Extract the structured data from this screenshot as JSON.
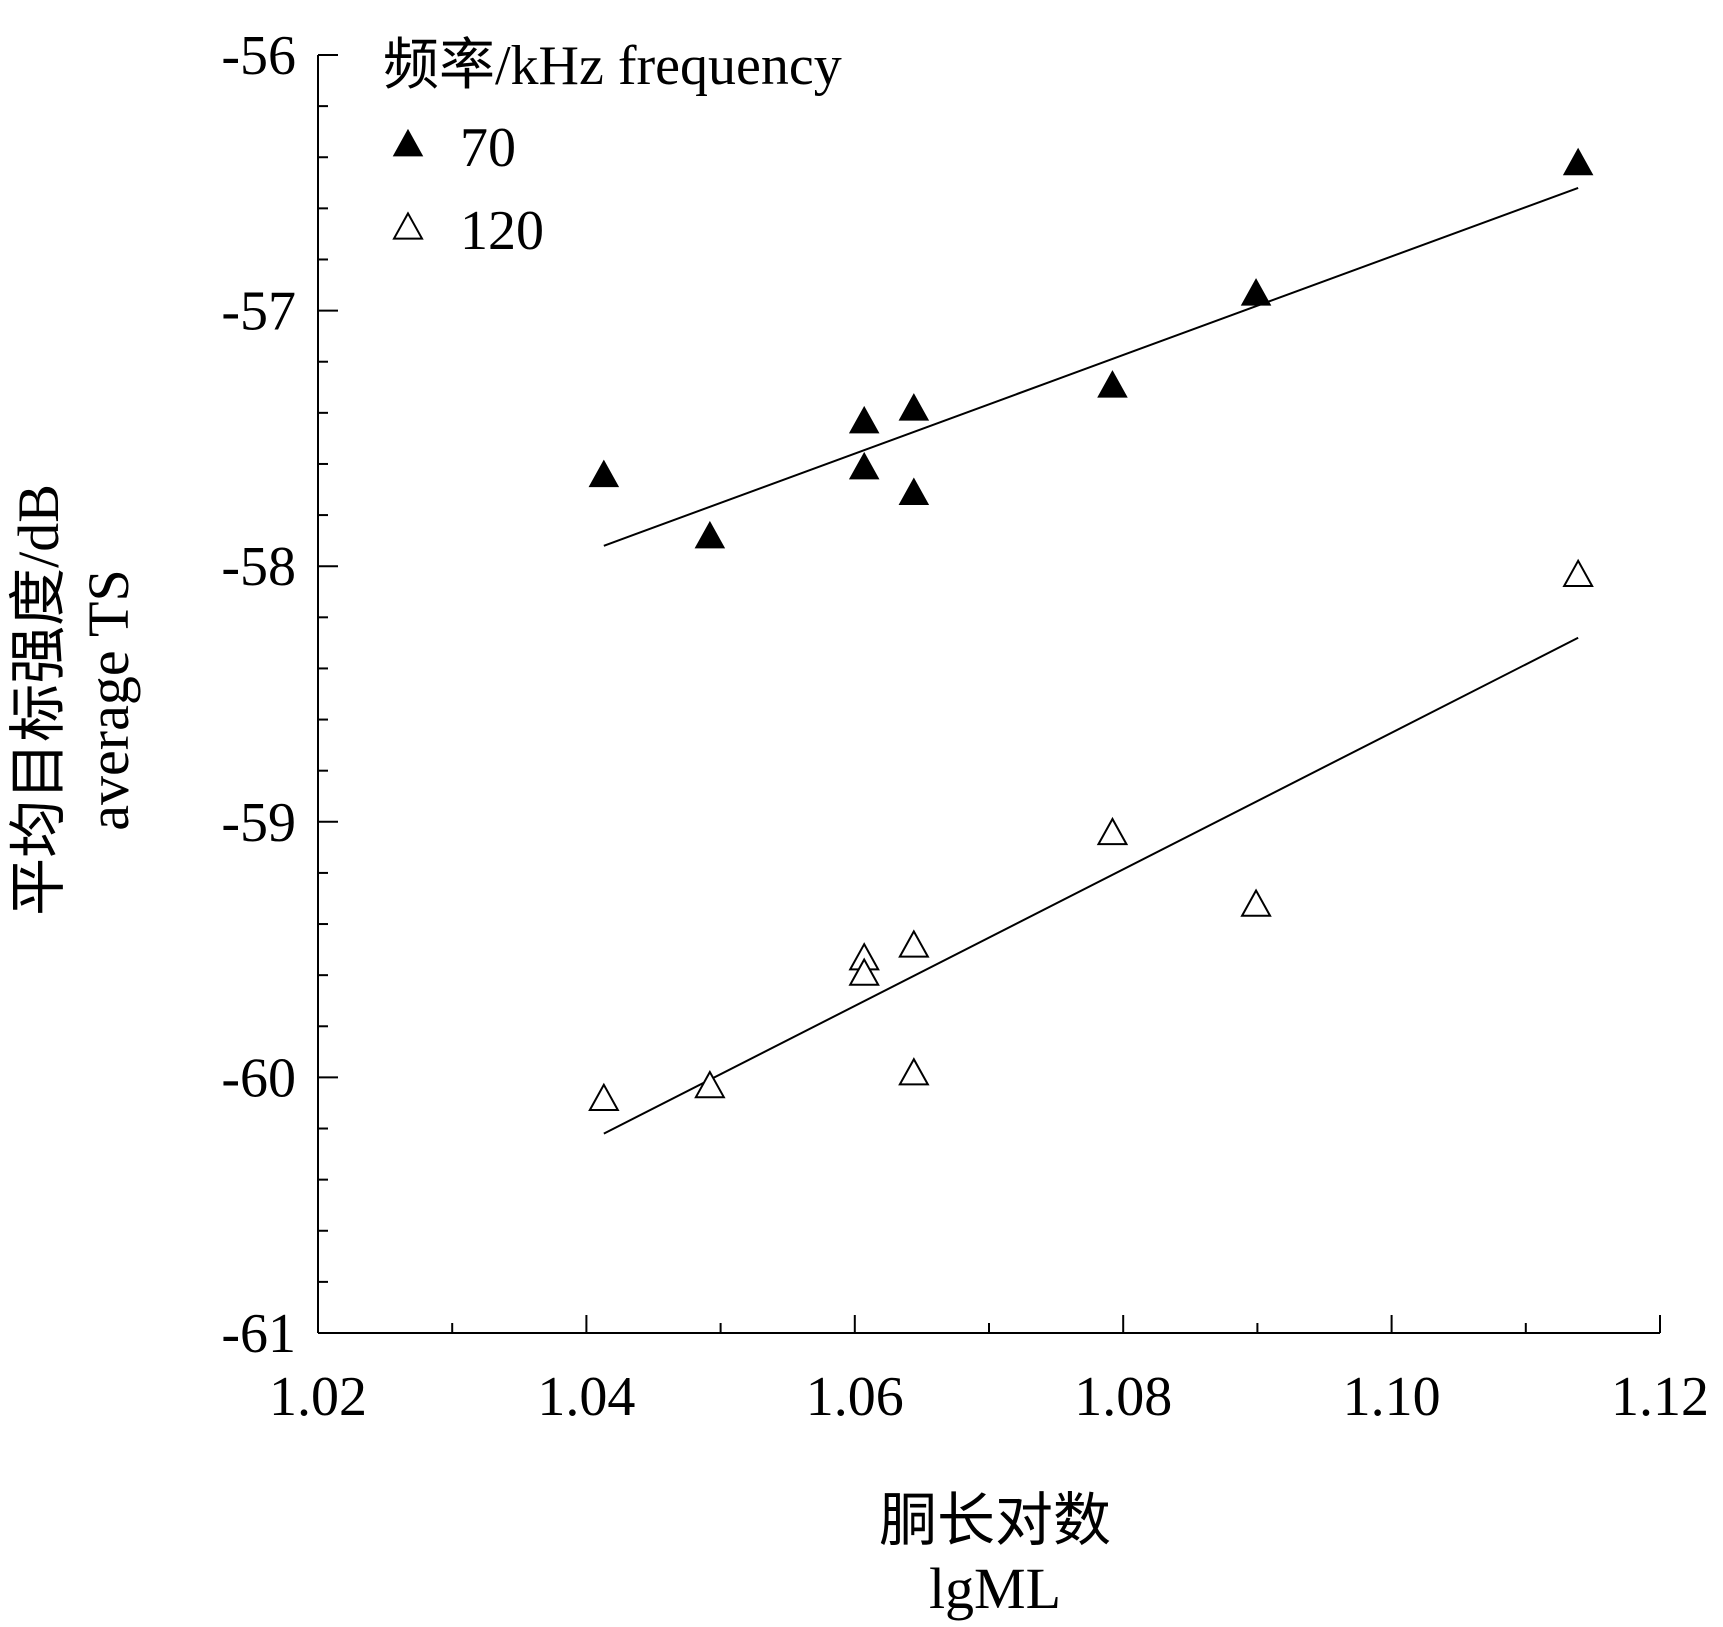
{
  "chart_data": {
    "type": "scatter",
    "title": "",
    "xlabel_cn": "胴长对数",
    "xlabel": "lgML",
    "ylabel_cn": "平均目标强度/dB",
    "ylabel": "average TS",
    "xlim": [
      1.02,
      1.12
    ],
    "ylim": [
      -61,
      -56
    ],
    "x_ticks": [
      "1.02",
      "1.04",
      "1.06",
      "1.08",
      "1.10",
      "1.12"
    ],
    "y_ticks": [
      "-56",
      "-57",
      "-58",
      "-59",
      "-60",
      "-61"
    ],
    "grid": false,
    "legend": {
      "title": "频率/kHz frequency",
      "placement": "top-left"
    },
    "series": [
      {
        "name": "70",
        "marker": "filled-triangle",
        "points": [
          {
            "x": 1.0413,
            "y": -57.65
          },
          {
            "x": 1.0492,
            "y": -57.89
          },
          {
            "x": 1.0607,
            "y": -57.44
          },
          {
            "x": 1.0607,
            "y": -57.62
          },
          {
            "x": 1.0644,
            "y": -57.39
          },
          {
            "x": 1.0644,
            "y": -57.72
          },
          {
            "x": 1.0792,
            "y": -57.3
          },
          {
            "x": 1.0899,
            "y": -56.94
          },
          {
            "x": 1.1139,
            "y": -56.43
          }
        ],
        "fit": {
          "x": [
            1.0413,
            1.1139
          ],
          "y": [
            -57.92,
            -56.52
          ]
        }
      },
      {
        "name": "120",
        "marker": "open-triangle",
        "points": [
          {
            "x": 1.0413,
            "y": -60.09
          },
          {
            "x": 1.0492,
            "y": -60.04
          },
          {
            "x": 1.0607,
            "y": -59.54
          },
          {
            "x": 1.0607,
            "y": -59.6
          },
          {
            "x": 1.0644,
            "y": -59.49
          },
          {
            "x": 1.0644,
            "y": -59.99
          },
          {
            "x": 1.0792,
            "y": -59.05
          },
          {
            "x": 1.0899,
            "y": -59.33
          },
          {
            "x": 1.1139,
            "y": -58.04
          }
        ],
        "fit": {
          "x": [
            1.0413,
            1.1139
          ],
          "y": [
            -60.22,
            -58.28
          ]
        }
      }
    ]
  }
}
